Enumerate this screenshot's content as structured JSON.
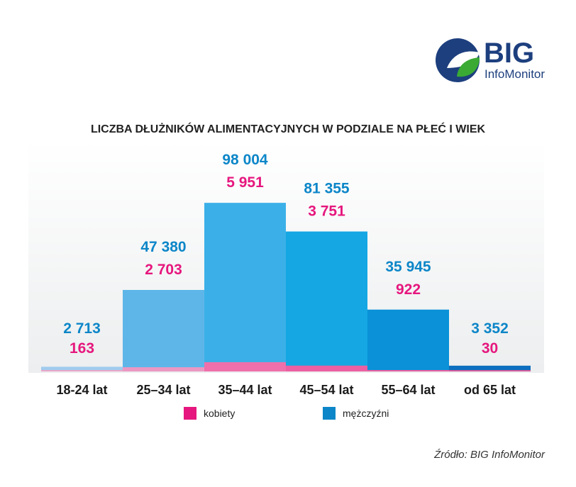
{
  "logo": {
    "name": "BIG",
    "subtitle": "InfoMonitor",
    "colors": {
      "navy": "#1d3f7e",
      "green": "#3aaa35"
    }
  },
  "chart_data": {
    "type": "bar",
    "stacked": true,
    "title": "LICZBA DŁUŻNIKÓW ALIMENTACYJNYCH W PODZIALE NA PŁEĆ I WIEK",
    "categories": [
      "18-24 lat",
      "25–34 lat",
      "35–44 lat",
      "45–54 lat",
      "55–64 lat",
      "od 65 lat"
    ],
    "series": [
      {
        "name": "kobiety",
        "values": [
          163,
          2703,
          5951,
          3751,
          922,
          30
        ],
        "labels": [
          "163",
          "2 703",
          "5 951",
          "3 751",
          "922",
          "30"
        ],
        "color": "#e6177e"
      },
      {
        "name": "mężczyźni",
        "values": [
          2713,
          47380,
          98004,
          81355,
          35945,
          3352
        ],
        "labels": [
          "2 713",
          "47 380",
          "98 004",
          "81 355",
          "35 945",
          "3 352"
        ],
        "color": "#0c86c8"
      }
    ],
    "bar_colors": [
      "#9fcbee",
      "#5eb6e8",
      "#3bb0e8",
      "#14a7e3",
      "#0a91d8",
      "#0d6fbf"
    ],
    "women_bar_colors": [
      "#e9a6c8",
      "#eb98c3",
      "#ef70ab",
      "#ec5fa2",
      "#e75ea0",
      "#d45a9c"
    ],
    "ylim": [
      0,
      100000
    ],
    "legend": "bottom"
  },
  "source": "Źródło: BIG InfoMonitor"
}
